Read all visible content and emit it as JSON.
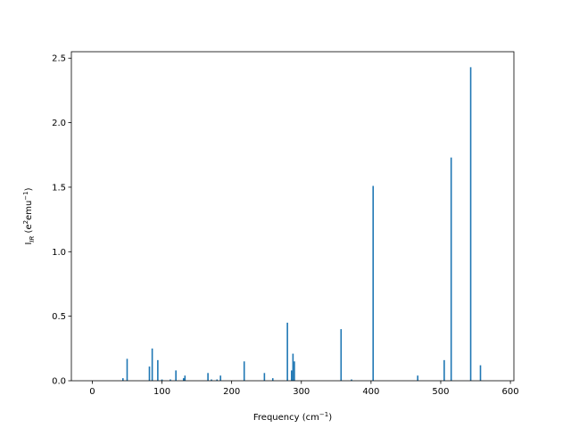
{
  "chart_data": {
    "type": "bar",
    "xlabel": "Frequency (cm",
    "xlabel_sup": "−1",
    "xlabel_end": ")",
    "ylabel_main": "I",
    "ylabel_sub": "IR",
    "ylabel_mid": " (e",
    "ylabel_sup1": "2",
    "ylabel_mid2": "emu",
    "ylabel_sup2": "−1",
    "ylabel_end": ")",
    "xlim": [
      -30,
      605
    ],
    "ylim": [
      0,
      2.55
    ],
    "xticks": [
      0,
      100,
      200,
      300,
      400,
      500,
      600
    ],
    "yticks": [
      0.0,
      0.5,
      1.0,
      1.5,
      2.0,
      2.5
    ],
    "xtick_labels": [
      "0",
      "100",
      "200",
      "300",
      "400",
      "500",
      "600"
    ],
    "ytick_labels": [
      "0.0",
      "0.5",
      "1.0",
      "1.5",
      "2.0",
      "2.5"
    ],
    "bar_color": "#1f77b4",
    "x": [
      44,
      50,
      82,
      86,
      94,
      100,
      112,
      120,
      131,
      133,
      166,
      171,
      179,
      184,
      218,
      247,
      259,
      280,
      286,
      288,
      290,
      357,
      372,
      403,
      467,
      505,
      515,
      543,
      557
    ],
    "values": [
      0.02,
      0.17,
      0.11,
      0.25,
      0.16,
      0.01,
      0.01,
      0.08,
      0.02,
      0.04,
      0.06,
      0.01,
      0.01,
      0.04,
      0.15,
      0.06,
      0.02,
      0.45,
      0.08,
      0.21,
      0.15,
      0.4,
      0.01,
      1.51,
      0.04,
      0.16,
      1.73,
      2.43,
      0.12
    ]
  }
}
